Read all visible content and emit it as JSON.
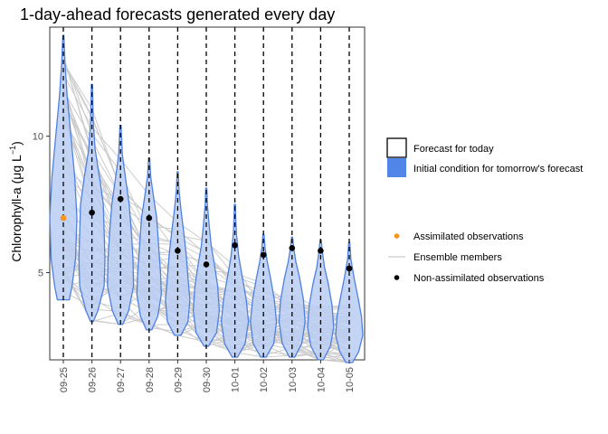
{
  "chart_data": {
    "type": "violin",
    "title": "1-day-ahead forecasts generated every day",
    "ylabel_main": "Chlorophyll-a (",
    "ylabel_mu": "μ",
    "ylabel_unit": "g L",
    "ylabel_exp": "−1",
    "ylabel_close": ")",
    "xlabel": "",
    "ylim": [
      1.8,
      14.0
    ],
    "yticks": [
      5,
      10
    ],
    "categories": [
      "09-25",
      "09-26",
      "09-27",
      "09-28",
      "09-29",
      "09-30",
      "10-01",
      "10-02",
      "10-03",
      "10-04",
      "10-05"
    ],
    "violins": [
      {
        "category": "09-25",
        "min": 4.0,
        "max": 13.7,
        "shape": [
          [
            4.0,
            0.22
          ],
          [
            4.5,
            0.32
          ],
          [
            5.5,
            0.45
          ],
          [
            7.0,
            0.5
          ],
          [
            8.5,
            0.42
          ],
          [
            10.0,
            0.28
          ],
          [
            11.5,
            0.14
          ],
          [
            12.7,
            0.06
          ],
          [
            13.7,
            0.02
          ]
        ]
      },
      {
        "category": "09-26",
        "min": 3.2,
        "max": 11.9,
        "shape": [
          [
            3.2,
            0.05
          ],
          [
            3.6,
            0.22
          ],
          [
            4.5,
            0.45
          ],
          [
            5.5,
            0.48
          ],
          [
            6.5,
            0.45
          ],
          [
            7.5,
            0.42
          ],
          [
            8.5,
            0.28
          ],
          [
            9.5,
            0.12
          ],
          [
            10.5,
            0.05
          ],
          [
            11.9,
            0.02
          ]
        ]
      },
      {
        "category": "09-27",
        "min": 3.1,
        "max": 10.4,
        "shape": [
          [
            3.1,
            0.08
          ],
          [
            3.6,
            0.3
          ],
          [
            4.5,
            0.48
          ],
          [
            5.5,
            0.46
          ],
          [
            6.5,
            0.4
          ],
          [
            7.5,
            0.32
          ],
          [
            8.5,
            0.18
          ],
          [
            9.3,
            0.07
          ],
          [
            10.4,
            0.02
          ]
        ]
      },
      {
        "category": "09-28",
        "min": 2.9,
        "max": 9.2,
        "shape": [
          [
            2.9,
            0.1
          ],
          [
            3.4,
            0.32
          ],
          [
            4.2,
            0.45
          ],
          [
            5.0,
            0.42
          ],
          [
            6.0,
            0.35
          ],
          [
            7.0,
            0.28
          ],
          [
            7.8,
            0.16
          ],
          [
            8.5,
            0.06
          ],
          [
            9.2,
            0.02
          ]
        ]
      },
      {
        "category": "09-29",
        "min": 2.7,
        "max": 8.7,
        "shape": [
          [
            2.7,
            0.12
          ],
          [
            3.2,
            0.38
          ],
          [
            4.0,
            0.45
          ],
          [
            4.8,
            0.38
          ],
          [
            5.6,
            0.32
          ],
          [
            6.5,
            0.22
          ],
          [
            7.3,
            0.12
          ],
          [
            8.0,
            0.05
          ],
          [
            8.7,
            0.02
          ]
        ]
      },
      {
        "category": "09-30",
        "min": 2.3,
        "max": 8.1,
        "shape": [
          [
            2.3,
            0.08
          ],
          [
            2.8,
            0.38
          ],
          [
            3.6,
            0.48
          ],
          [
            4.5,
            0.42
          ],
          [
            5.3,
            0.3
          ],
          [
            6.0,
            0.18
          ],
          [
            6.8,
            0.1
          ],
          [
            7.5,
            0.04
          ],
          [
            8.1,
            0.02
          ]
        ]
      },
      {
        "category": "10-01",
        "min": 1.9,
        "max": 7.5,
        "shape": [
          [
            1.9,
            0.1
          ],
          [
            2.4,
            0.38
          ],
          [
            3.2,
            0.5
          ],
          [
            4.0,
            0.42
          ],
          [
            4.8,
            0.28
          ],
          [
            5.6,
            0.14
          ],
          [
            6.4,
            0.06
          ],
          [
            7.0,
            0.03
          ],
          [
            7.5,
            0.02
          ]
        ]
      },
      {
        "category": "10-02",
        "min": 1.9,
        "max": 6.4,
        "shape": [
          [
            1.9,
            0.1
          ],
          [
            2.4,
            0.38
          ],
          [
            3.2,
            0.48
          ],
          [
            4.0,
            0.4
          ],
          [
            4.8,
            0.26
          ],
          [
            5.4,
            0.14
          ],
          [
            5.9,
            0.06
          ],
          [
            6.4,
            0.02
          ]
        ]
      },
      {
        "category": "10-03",
        "min": 1.9,
        "max": 6.3,
        "shape": [
          [
            1.9,
            0.1
          ],
          [
            2.4,
            0.36
          ],
          [
            3.2,
            0.48
          ],
          [
            4.0,
            0.42
          ],
          [
            4.8,
            0.28
          ],
          [
            5.4,
            0.14
          ],
          [
            5.9,
            0.06
          ],
          [
            6.3,
            0.02
          ]
        ]
      },
      {
        "category": "10-04",
        "min": 1.8,
        "max": 6.2,
        "shape": [
          [
            1.8,
            0.1
          ],
          [
            2.3,
            0.36
          ],
          [
            3.0,
            0.48
          ],
          [
            3.8,
            0.42
          ],
          [
            4.6,
            0.28
          ],
          [
            5.2,
            0.14
          ],
          [
            5.8,
            0.06
          ],
          [
            6.2,
            0.02
          ]
        ]
      },
      {
        "category": "10-05",
        "min": 1.7,
        "max": 6.1,
        "shape": [
          [
            1.7,
            0.12
          ],
          [
            2.1,
            0.35
          ],
          [
            2.7,
            0.5
          ],
          [
            3.4,
            0.45
          ],
          [
            4.1,
            0.32
          ],
          [
            4.8,
            0.18
          ],
          [
            5.5,
            0.06
          ],
          [
            6.1,
            0.02
          ]
        ]
      }
    ],
    "assimilated_observations": [
      {
        "category": "09-25",
        "y": 7.0
      }
    ],
    "non_assimilated_observations": [
      {
        "category": "09-26",
        "y": 7.2
      },
      {
        "category": "09-27",
        "y": 7.7
      },
      {
        "category": "09-28",
        "y": 7.0
      },
      {
        "category": "09-29",
        "y": 5.8
      },
      {
        "category": "09-30",
        "y": 5.3
      },
      {
        "category": "10-01",
        "y": 6.0
      },
      {
        "category": "10-02",
        "y": 5.65
      },
      {
        "category": "10-03",
        "y": 5.9
      },
      {
        "category": "10-04",
        "y": 5.8
      },
      {
        "category": "10-05",
        "y": 5.15
      }
    ],
    "ensemble_members": 60,
    "ensemble_start_range": [
      4.0,
      13.7
    ],
    "legend": {
      "fill": [
        {
          "label": "Forecast for today",
          "fill": "#ffffff",
          "border": "#000000"
        },
        {
          "label": "Initial condition for tomorrow's forecast",
          "fill": "#5285e8",
          "border": "#5285e8"
        }
      ],
      "points": [
        {
          "label": "Assimilated observations",
          "color": "#f7941d",
          "kind": "point"
        },
        {
          "label": "Ensemble members",
          "color": "#cccccc",
          "kind": "line"
        },
        {
          "label": "Non-assimilated observations",
          "color": "#000000",
          "kind": "point"
        }
      ]
    },
    "colors": {
      "violin_fill": "#b8cdf3",
      "violin_stroke": "#4f80e0",
      "ensemble": "#cccccc",
      "assimilated": "#f7941d",
      "observed": "#000000",
      "vline": "#000000",
      "panel_border": "#333333"
    },
    "grid": false,
    "legend_position": "right"
  }
}
